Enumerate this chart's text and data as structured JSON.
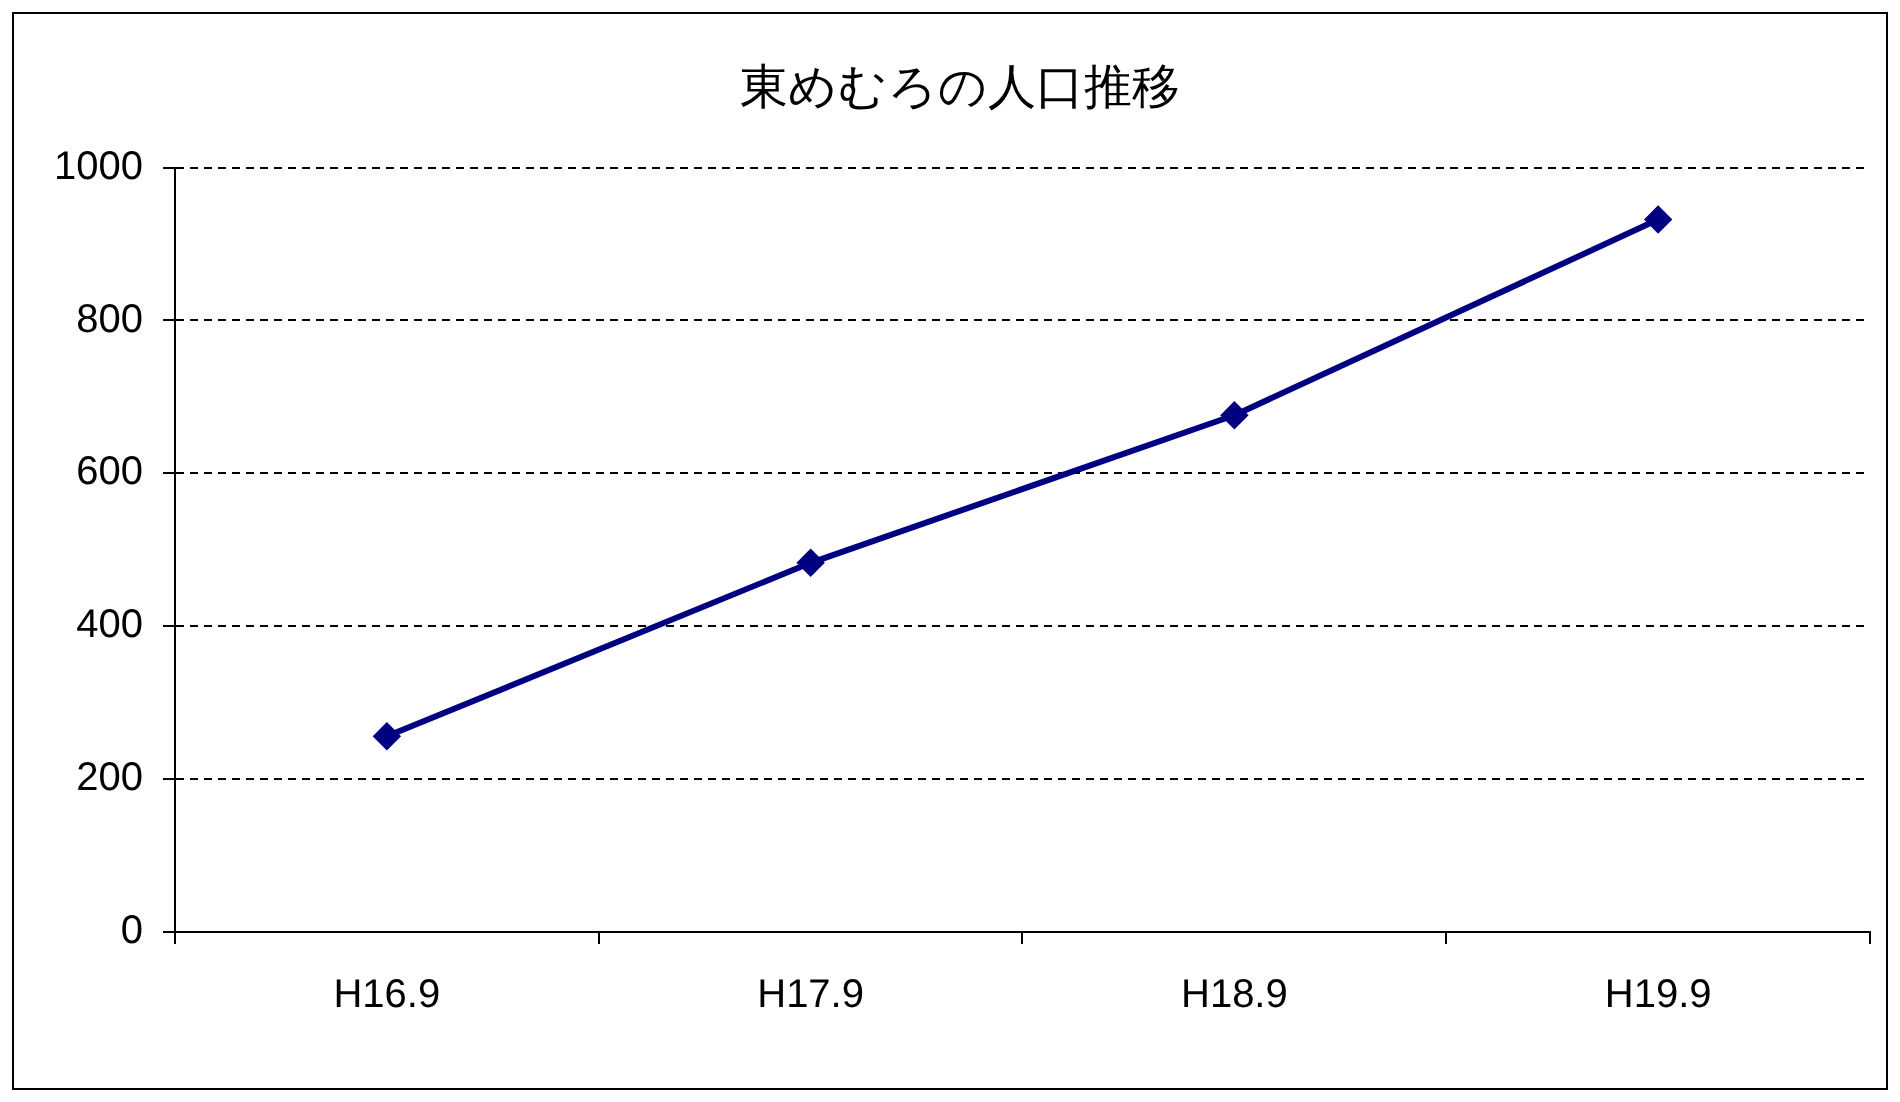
{
  "chart_data": {
    "type": "line",
    "title": "東めむろの人口推移",
    "categories": [
      "H16.9",
      "H17.9",
      "H18.9",
      "H19.9"
    ],
    "series": [
      {
        "color": "#000080",
        "values": [
          256,
          483,
          676,
          932
        ]
      }
    ],
    "ylim": [
      0,
      1000
    ],
    "yticks": [
      0,
      200,
      400,
      600,
      800,
      1000
    ],
    "grid": "y",
    "legend": false,
    "marker": "diamond",
    "line_style": "solid"
  }
}
